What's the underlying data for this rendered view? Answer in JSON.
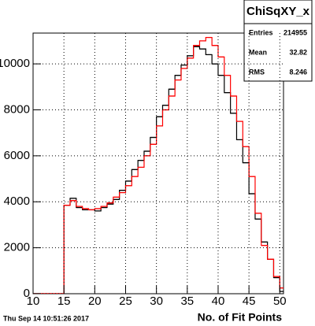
{
  "chart_data": {
    "type": "histogram",
    "bins": [
      10,
      11,
      12,
      13,
      14,
      15,
      16,
      17,
      18,
      19,
      20,
      21,
      22,
      23,
      24,
      25,
      26,
      27,
      28,
      29,
      30,
      31,
      32,
      33,
      34,
      35,
      36,
      37,
      38,
      39,
      40,
      41,
      42,
      43,
      44,
      45,
      46,
      47,
      48,
      49,
      50,
      51
    ],
    "series": [
      {
        "color": "#000000",
        "values": [
          0,
          0,
          0,
          0,
          0,
          3850,
          4150,
          3750,
          3650,
          3650,
          3600,
          3750,
          3900,
          4100,
          4500,
          4900,
          5400,
          5800,
          6200,
          6800,
          7700,
          8200,
          8900,
          9500,
          9950,
          10350,
          10750,
          10650,
          10400,
          10000,
          9500,
          8750,
          7850,
          6700,
          5700,
          4350,
          3250,
          2250,
          1500,
          700,
          100
        ]
      },
      {
        "color": "#ff0000",
        "values": [
          0,
          0,
          0,
          0,
          0,
          3850,
          4050,
          3800,
          3700,
          3650,
          3700,
          3800,
          3950,
          4200,
          4400,
          4700,
          5100,
          5500,
          6000,
          6500,
          7300,
          8000,
          8600,
          9300,
          9800,
          10250,
          10800,
          11000,
          11150,
          10800,
          10300,
          9500,
          8600,
          7500,
          6400,
          5100,
          3500,
          2100,
          1500,
          750,
          250
        ]
      }
    ],
    "xlim": [
      10,
      50.6
    ],
    "ylim": [
      0,
      11340
    ],
    "xticks": [
      10,
      15,
      20,
      25,
      30,
      35,
      40,
      45,
      50
    ],
    "yticks": [
      0,
      2000,
      4000,
      6000,
      8000,
      10000
    ],
    "grid": true,
    "xlabel": "No. of Fit Points",
    "footer": "Thu Sep 14 10:51:26 2017",
    "stats": {
      "name": "ChiSqXY_x",
      "rows": [
        {
          "label": "Entries",
          "value": 214955
        },
        {
          "label": "Mean",
          "value": 32.82
        },
        {
          "label": "RMS",
          "value": 8.246
        }
      ]
    }
  }
}
